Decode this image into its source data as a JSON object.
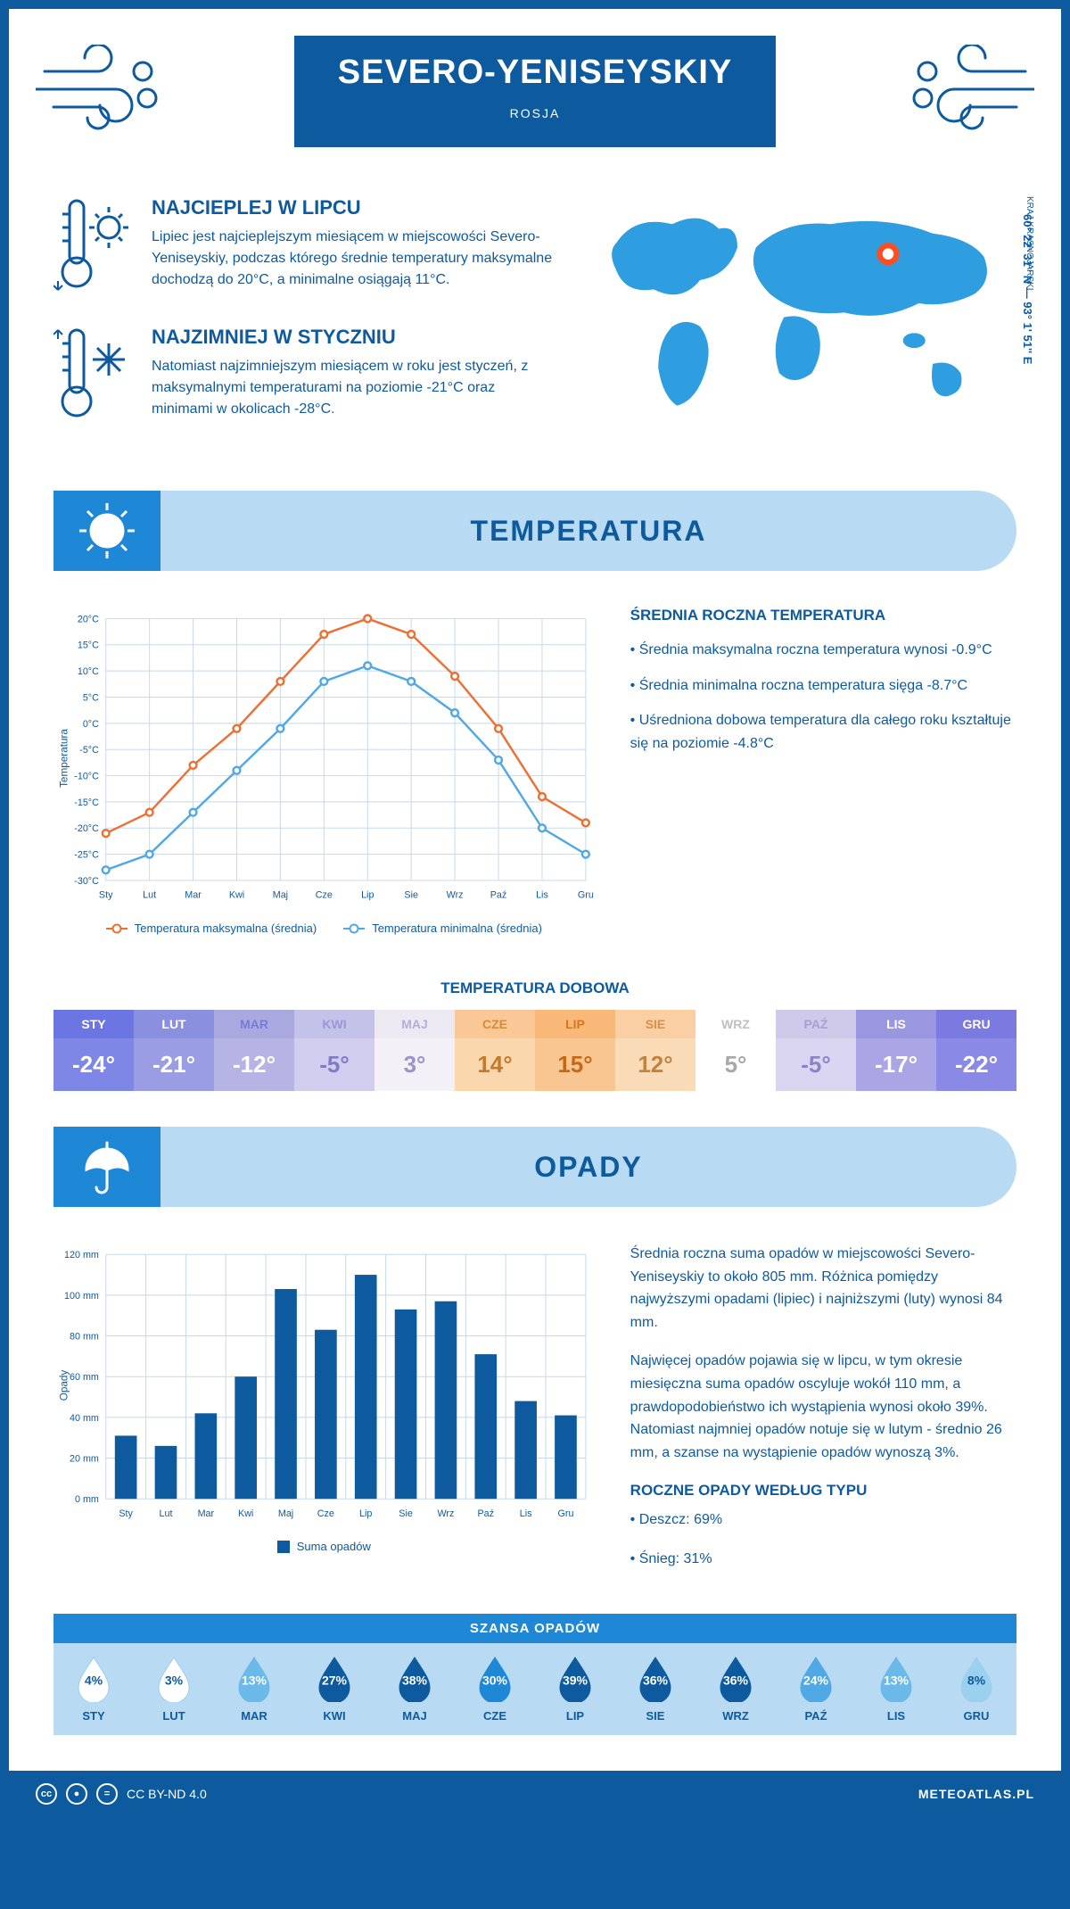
{
  "header": {
    "title": "SEVERO-YENISEYSKIY",
    "country": "ROSJA",
    "coords": "60° 22' 31'' N — 93° 1' 51'' E",
    "region": "KRAJ KRASNOJARSKI"
  },
  "facts": {
    "hot": {
      "title": "NAJCIEPLEJ W LIPCU",
      "text": "Lipiec jest najcieplejszym miesiącem w miejscowości Severo-Yeniseyskiy, podczas którego średnie temperatury maksymalne dochodzą do 20°C, a minimalne osiągają 11°C."
    },
    "cold": {
      "title": "NAJZIMNIEJ W STYCZNIU",
      "text": "Natomiast najzimniejszym miesiącem w roku jest styczeń, z maksymalnymi temperaturami na poziomie -21°C oraz minimami w okolicach -28°C."
    }
  },
  "map": {
    "marker_x": 322,
    "marker_y": 62
  },
  "sections": {
    "temp": "TEMPERATURA",
    "precip": "OPADY"
  },
  "months": [
    "Sty",
    "Lut",
    "Mar",
    "Kwi",
    "Maj",
    "Cze",
    "Lip",
    "Sie",
    "Wrz",
    "Paź",
    "Lis",
    "Gru"
  ],
  "months_upper": [
    "STY",
    "LUT",
    "MAR",
    "KWI",
    "MAJ",
    "CZE",
    "LIP",
    "SIE",
    "WRZ",
    "PAŹ",
    "LIS",
    "GRU"
  ],
  "temp_chart": {
    "type": "line",
    "ylabel": "Temperatura",
    "ylim": [
      -30,
      20
    ],
    "ytick_step": 5,
    "y_suffix": "°C",
    "max_series": [
      -21,
      -17,
      -8,
      -1,
      8,
      17,
      20,
      17,
      9,
      -1,
      -14,
      -19
    ],
    "min_series": [
      -28,
      -25,
      -17,
      -9,
      -1,
      8,
      11,
      8,
      2,
      -7,
      -20,
      -25
    ],
    "max_color": "#ed7033",
    "min_color": "#50a8e4",
    "grid_color": "#c8d8e8",
    "legend_max": "Temperatura maksymalna (średnia)",
    "legend_min": "Temperatura minimalna (średnia)"
  },
  "temp_info": {
    "title": "ŚREDNIA ROCZNA TEMPERATURA",
    "lines": [
      "• Średnia maksymalna roczna temperatura wynosi -0.9°C",
      "• Średnia minimalna roczna temperatura sięga -8.7°C",
      "• Uśredniona dobowa temperatura dla całego roku kształtuje się na poziomie -4.8°C"
    ]
  },
  "daily": {
    "title": "TEMPERATURA DOBOWA",
    "values": [
      "-24°",
      "-21°",
      "-12°",
      "-5°",
      "3°",
      "14°",
      "15°",
      "12°",
      "5°",
      "-5°",
      "-17°",
      "-22°"
    ],
    "header_bg": [
      "#6b76e3",
      "#8a8fe0",
      "#a9a9e0",
      "#c4c2e8",
      "#ede9f2",
      "#f9c896",
      "#f7b878",
      "#f9cfa3",
      "#ffffff",
      "#cfc9ea",
      "#9b96e0",
      "#7a7ae0"
    ],
    "header_fg": [
      "#ffffff",
      "#ffffff",
      "#7a7ad6",
      "#9b96d6",
      "#b5add6",
      "#d68a3a",
      "#d6771f",
      "#d6914d",
      "#bfbfbf",
      "#a99fd6",
      "#ffffff",
      "#ffffff"
    ],
    "value_bg": [
      "#7e87e6",
      "#9a9de3",
      "#b6b4e5",
      "#d1cdee",
      "#f4f0f7",
      "#fad7ad",
      "#f9c691",
      "#fadbb8",
      "#ffffff",
      "#dad5f0",
      "#aaa5e5",
      "#8a89e5"
    ],
    "value_fg": [
      "#ffffff",
      "#ffffff",
      "#ffffff",
      "#7f7ac9",
      "#9b93c9",
      "#c47a2e",
      "#c46a17",
      "#c4833d",
      "#a8a8a8",
      "#8c83c9",
      "#ffffff",
      "#ffffff"
    ]
  },
  "precip_chart": {
    "type": "bar",
    "ylabel": "Opady",
    "ylim": [
      0,
      120
    ],
    "ytick_step": 20,
    "y_suffix": " mm",
    "values": [
      31,
      26,
      42,
      60,
      103,
      83,
      110,
      93,
      97,
      71,
      48,
      41
    ],
    "bar_color": "#0e5a9e",
    "legend": "Suma opadów"
  },
  "precip_info": {
    "p1": "Średnia roczna suma opadów w miejscowości Severo-Yeniseyskiy to około 805 mm. Różnica pomiędzy najwyższymi opadami (lipiec) i najniższymi (luty) wynosi 84 mm.",
    "p2": "Najwięcej opadów pojawia się w lipcu, w tym okresie miesięczna suma opadów oscyluje wokół 110 mm, a prawdopodobieństwo ich wystąpienia wynosi około 39%. Natomiast najmniej opadów notuje się w lutym - średnio 26 mm, a szanse na wystąpienie opadów wynoszą 3%.",
    "type_title": "ROCZNE OPADY WEDŁUG TYPU",
    "type_lines": [
      "• Deszcz: 69%",
      "• Śnieg: 31%"
    ]
  },
  "chance": {
    "title": "SZANSA OPADÓW",
    "values": [
      4,
      3,
      13,
      27,
      38,
      30,
      39,
      36,
      36,
      24,
      13,
      8
    ],
    "fills": [
      "#ffffff",
      "#ffffff",
      "#6bb9e8",
      "#0e5a9e",
      "#0e5a9e",
      "#1e88d6",
      "#0e5a9e",
      "#0e5a9e",
      "#0e5a9e",
      "#50a8e4",
      "#6bb9e8",
      "#9bd0ef"
    ],
    "text_colors": [
      "#0e5a9e",
      "#0e5a9e",
      "#ffffff",
      "#ffffff",
      "#ffffff",
      "#ffffff",
      "#ffffff",
      "#ffffff",
      "#ffffff",
      "#ffffff",
      "#ffffff",
      "#0e5a9e"
    ]
  },
  "footer": {
    "license": "CC BY-ND 4.0",
    "site": "METEOATLAS.PL"
  }
}
